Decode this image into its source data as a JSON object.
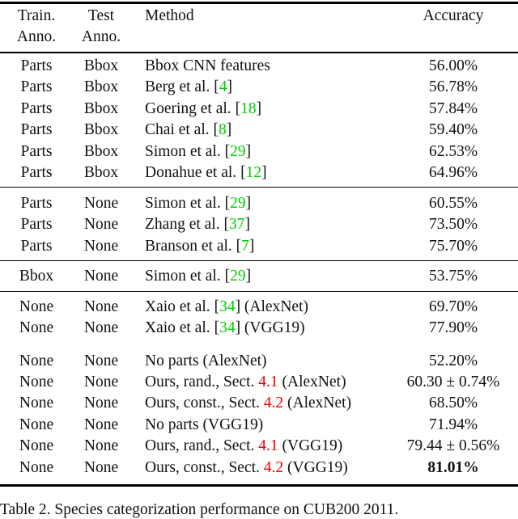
{
  "header": {
    "train_line1": "Train.",
    "train_line2": "Anno.",
    "test_line1": "Test",
    "test_line2": "Anno.",
    "method": "Method",
    "accuracy": "Accuracy"
  },
  "colors": {
    "citation": "#00cc00",
    "section_ref": "#ee0000"
  },
  "rows": [
    {
      "train": "Parts",
      "test": "Bbox",
      "method": [
        {
          "t": "Bbox CNN features"
        }
      ],
      "accuracy": "56.00%"
    },
    {
      "train": "Parts",
      "test": "Bbox",
      "method": [
        {
          "t": "Berg "
        },
        {
          "t": "et al.",
          "s": "i"
        },
        {
          "t": " ["
        },
        {
          "t": "4",
          "s": "green"
        },
        {
          "t": "]"
        }
      ],
      "accuracy": "56.78%"
    },
    {
      "train": "Parts",
      "test": "Bbox",
      "method": [
        {
          "t": "Goering "
        },
        {
          "t": "et al.",
          "s": "i"
        },
        {
          "t": " ["
        },
        {
          "t": "18",
          "s": "green"
        },
        {
          "t": "]"
        }
      ],
      "accuracy": "57.84%"
    },
    {
      "train": "Parts",
      "test": "Bbox",
      "method": [
        {
          "t": "Chai "
        },
        {
          "t": "et al.",
          "s": "i"
        },
        {
          "t": " ["
        },
        {
          "t": "8",
          "s": "green"
        },
        {
          "t": "]"
        }
      ],
      "accuracy": "59.40%"
    },
    {
      "train": "Parts",
      "test": "Bbox",
      "method": [
        {
          "t": "Simon "
        },
        {
          "t": "et al.",
          "s": "i"
        },
        {
          "t": " ["
        },
        {
          "t": "29",
          "s": "green"
        },
        {
          "t": "]"
        }
      ],
      "accuracy": "62.53%"
    },
    {
      "train": "Parts",
      "test": "Bbox",
      "method": [
        {
          "t": "Donahue "
        },
        {
          "t": "et al.",
          "s": "i"
        },
        {
          "t": " ["
        },
        {
          "t": "12",
          "s": "green"
        },
        {
          "t": "]"
        }
      ],
      "accuracy": "64.96%"
    },
    {
      "train": "Parts",
      "test": "None",
      "method": [
        {
          "t": "Simon "
        },
        {
          "t": "et al.",
          "s": "i"
        },
        {
          "t": " ["
        },
        {
          "t": "29",
          "s": "green"
        },
        {
          "t": "]"
        }
      ],
      "accuracy": "60.55%"
    },
    {
      "train": "Parts",
      "test": "None",
      "method": [
        {
          "t": "Zhang "
        },
        {
          "t": "et al.",
          "s": "i"
        },
        {
          "t": " ["
        },
        {
          "t": "37",
          "s": "green"
        },
        {
          "t": "]"
        }
      ],
      "accuracy": "73.50%"
    },
    {
      "train": "Parts",
      "test": "None",
      "method": [
        {
          "t": "Branson "
        },
        {
          "t": "et al.",
          "s": "i"
        },
        {
          "t": " ["
        },
        {
          "t": "7",
          "s": "green"
        },
        {
          "t": "]"
        }
      ],
      "accuracy": "75.70%"
    },
    {
      "train": "Bbox",
      "test": "None",
      "method": [
        {
          "t": "Simon "
        },
        {
          "t": "et al.",
          "s": "i"
        },
        {
          "t": " ["
        },
        {
          "t": "29",
          "s": "green"
        },
        {
          "t": "]"
        }
      ],
      "accuracy": "53.75%"
    },
    {
      "train": "None",
      "test": "None",
      "method": [
        {
          "t": "Xaio "
        },
        {
          "t": "et al.",
          "s": "i"
        },
        {
          "t": " ["
        },
        {
          "t": "34",
          "s": "green"
        },
        {
          "t": "] (AlexNet)"
        }
      ],
      "accuracy": "69.70%"
    },
    {
      "train": "None",
      "test": "None",
      "method": [
        {
          "t": "Xaio "
        },
        {
          "t": "et al.",
          "s": "i"
        },
        {
          "t": " ["
        },
        {
          "t": "34",
          "s": "green"
        },
        {
          "t": "] (VGG19)"
        }
      ],
      "accuracy": "77.90%"
    },
    {
      "train": "None",
      "test": "None",
      "method": [
        {
          "t": "No parts (AlexNet)"
        }
      ],
      "accuracy": "52.20%"
    },
    {
      "train": "None",
      "test": "None",
      "method": [
        {
          "t": "Ours, rand., Sect. "
        },
        {
          "t": "4.1",
          "s": "red"
        },
        {
          "t": " (AlexNet)"
        }
      ],
      "accuracy": "60.30 ± 0.74%"
    },
    {
      "train": "None",
      "test": "None",
      "method": [
        {
          "t": "Ours, const., Sect. "
        },
        {
          "t": "4.2",
          "s": "red"
        },
        {
          "t": " (AlexNet)"
        }
      ],
      "accuracy": "68.50%"
    },
    {
      "train": "None",
      "test": "None",
      "method": [
        {
          "t": "No parts (VGG19)"
        }
      ],
      "accuracy": "71.94%"
    },
    {
      "train": "None",
      "test": "None",
      "method": [
        {
          "t": "Ours, rand., Sect. "
        },
        {
          "t": "4.1",
          "s": "red"
        },
        {
          "t": " (VGG19)"
        }
      ],
      "accuracy": "79.44 ± 0.56%"
    },
    {
      "train": "None",
      "test": "None",
      "method": [
        {
          "t": "Ours, const., Sect. "
        },
        {
          "t": "4.2",
          "s": "red"
        },
        {
          "t": " (VGG19)"
        }
      ],
      "accuracy": "81.01%",
      "bold": true
    }
  ],
  "caption": "Table 2. Species categorization performance on CUB200 2011."
}
